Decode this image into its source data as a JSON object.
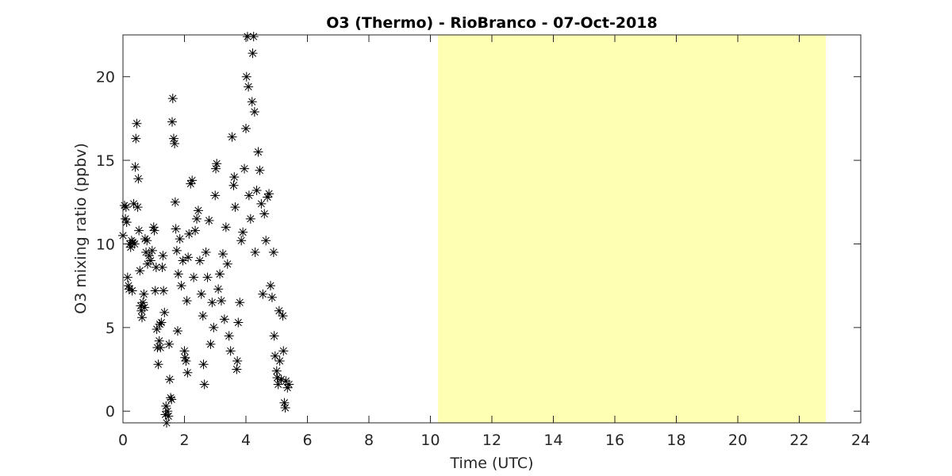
{
  "chart_data": {
    "type": "scatter",
    "title": "O3 (Thermo) - RioBranco - 07-Oct-2018",
    "xlabel": "Time (UTC)",
    "ylabel": "O3 mixing ratio (ppbv)",
    "xlim": [
      0,
      24
    ],
    "ylim": [
      -0.7,
      22.5
    ],
    "xticks": [
      0,
      2,
      4,
      6,
      8,
      10,
      12,
      14,
      16,
      18,
      20,
      22,
      24
    ],
    "yticks": [
      0,
      5,
      10,
      15,
      20
    ],
    "color": "#000000",
    "shaded_xrange": [
      10.25,
      22.86
    ],
    "shaded_color": "#ffffb3",
    "x": [
      0.0,
      0.05,
      0.08,
      0.1,
      0.12,
      0.15,
      0.18,
      0.2,
      0.22,
      0.25,
      0.28,
      0.3,
      0.32,
      0.35,
      0.38,
      0.4,
      0.42,
      0.45,
      0.48,
      0.5,
      0.52,
      0.55,
      0.58,
      0.6,
      0.62,
      0.65,
      0.68,
      0.7,
      0.72,
      0.75,
      0.78,
      0.8,
      0.85,
      0.9,
      0.95,
      1.0,
      1.02,
      1.05,
      1.08,
      1.1,
      1.12,
      1.15,
      1.18,
      1.2,
      1.22,
      1.25,
      1.28,
      1.3,
      1.32,
      1.35,
      1.38,
      1.4,
      1.42,
      1.45,
      1.48,
      1.5,
      1.52,
      1.55,
      1.58,
      1.6,
      1.62,
      1.65,
      1.68,
      1.7,
      1.72,
      1.75,
      1.78,
      1.8,
      1.85,
      1.9,
      1.95,
      2.0,
      2.02,
      2.05,
      2.08,
      2.1,
      2.12,
      2.15,
      2.2,
      2.25,
      2.3,
      2.35,
      2.4,
      2.45,
      2.5,
      2.55,
      2.6,
      2.62,
      2.65,
      2.7,
      2.75,
      2.8,
      2.85,
      2.9,
      2.95,
      3.0,
      3.02,
      3.05,
      3.1,
      3.15,
      3.2,
      3.25,
      3.3,
      3.35,
      3.4,
      3.45,
      3.5,
      3.55,
      3.6,
      3.62,
      3.65,
      3.7,
      3.72,
      3.75,
      3.8,
      3.85,
      3.9,
      3.95,
      4.0,
      4.02,
      4.05,
      4.08,
      4.1,
      4.15,
      4.2,
      4.22,
      4.25,
      4.28,
      4.3,
      4.35,
      4.4,
      4.45,
      4.5,
      4.55,
      4.6,
      4.65,
      4.7,
      4.75,
      4.8,
      4.85,
      4.9,
      4.92,
      4.95,
      5.0,
      5.02,
      5.05,
      5.08,
      5.1,
      5.15,
      5.2,
      5.22,
      5.25,
      5.28,
      5.3,
      5.35,
      5.4
    ],
    "values": [
      10.5,
      12.3,
      11.5,
      12.2,
      11.3,
      8.0,
      7.5,
      7.3,
      10.0,
      9.8,
      10.2,
      7.2,
      10.1,
      12.4,
      10.0,
      14.6,
      16.3,
      17.2,
      12.2,
      13.9,
      10.8,
      8.4,
      6.3,
      6.0,
      5.6,
      6.5,
      7.0,
      6.2,
      10.3,
      9.5,
      10.2,
      8.8,
      9.3,
      9.0,
      9.6,
      11.0,
      10.8,
      7.2,
      8.6,
      4.9,
      3.8,
      2.8,
      4.2,
      5.2,
      3.8,
      5.3,
      8.6,
      9.3,
      7.2,
      5.9,
      -0.2,
      0.3,
      -0.7,
      0.0,
      -0.3,
      4.0,
      1.9,
      0.8,
      0.7,
      17.3,
      18.7,
      16.3,
      16.0,
      12.5,
      10.9,
      9.6,
      4.8,
      8.2,
      10.3,
      7.5,
      9.0,
      3.6,
      3.2,
      3.0,
      6.6,
      2.3,
      9.2,
      10.6,
      13.6,
      13.8,
      8.0,
      10.8,
      11.5,
      12.0,
      9.0,
      7.0,
      5.7,
      2.8,
      1.6,
      9.5,
      8.0,
      11.4,
      4.0,
      6.5,
      5.0,
      12.9,
      14.5,
      14.8,
      7.3,
      8.2,
      6.6,
      9.4,
      5.5,
      11.0,
      8.8,
      4.5,
      3.6,
      16.4,
      13.5,
      14.0,
      12.2,
      2.5,
      3.0,
      5.3,
      6.5,
      10.2,
      10.7,
      14.5,
      16.9,
      20.0,
      22.4,
      19.4,
      12.9,
      11.5,
      18.5,
      21.4,
      22.4,
      17.9,
      9.5,
      13.2,
      15.5,
      14.4,
      12.4,
      7.0,
      11.8,
      10.2,
      12.8,
      13.0,
      7.5,
      6.8,
      9.5,
      4.5,
      3.3,
      2.4,
      2.0,
      1.6,
      6.0,
      3.0,
      1.9,
      5.7,
      3.6,
      0.5,
      0.2,
      1.8,
      1.4,
      1.6
    ]
  }
}
